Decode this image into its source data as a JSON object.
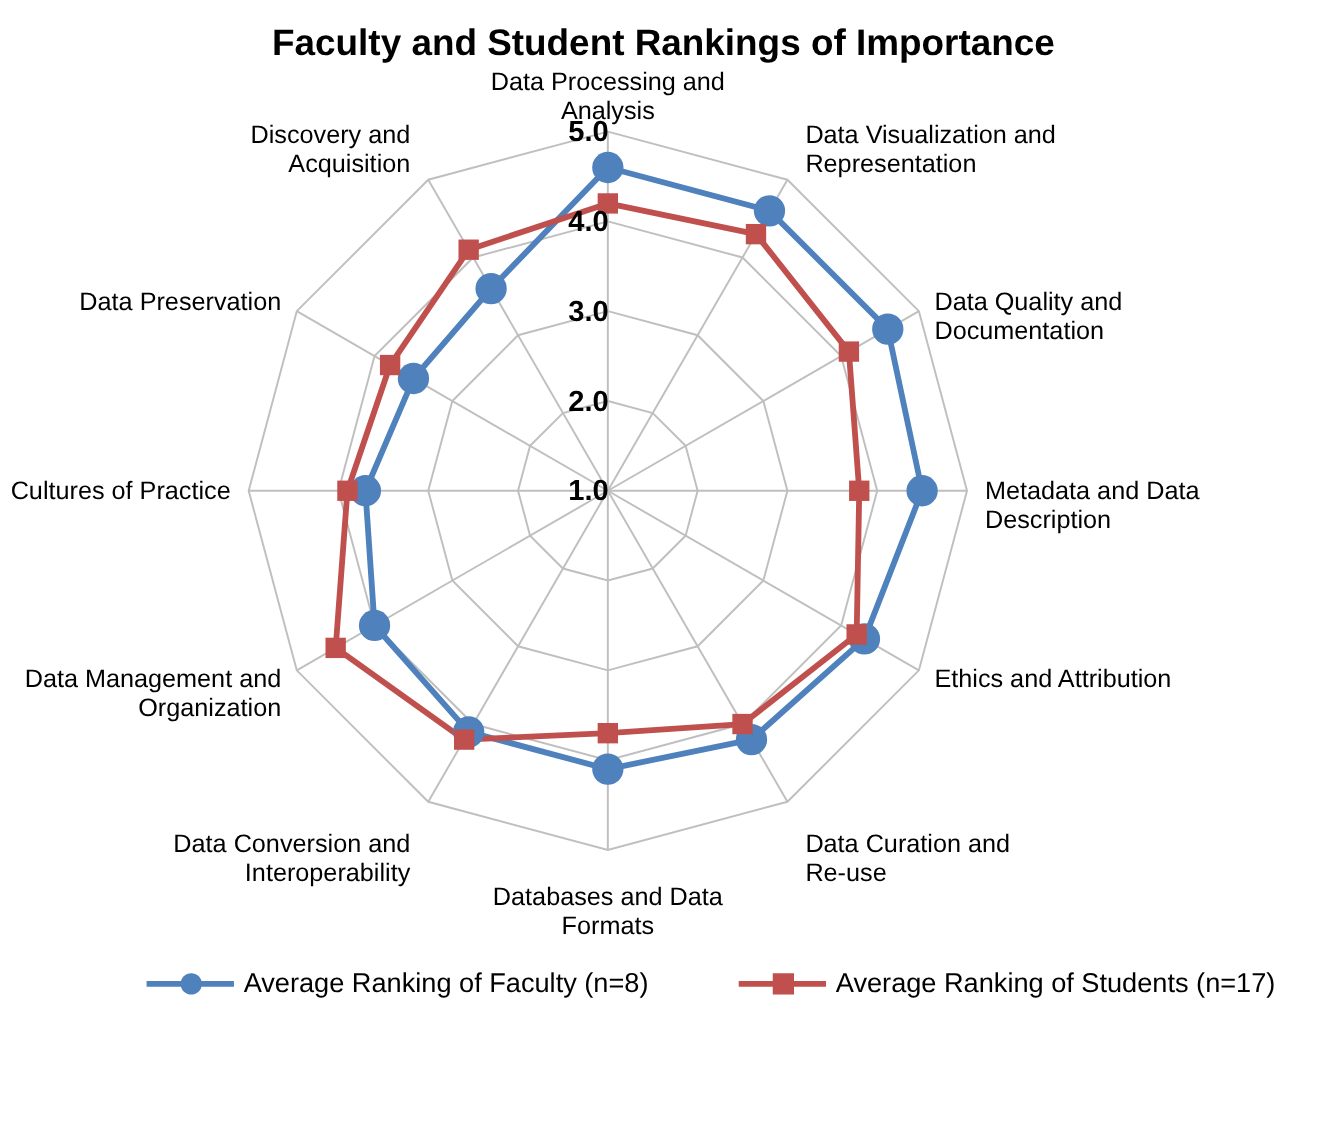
{
  "chart_data": {
    "type": "radar",
    "title": "Faculty and Student Rankings of Importance",
    "categories": [
      "Data Processing and Analysis",
      "Data Visualization and Representation",
      "Data Quality and Documentation",
      "Metadata and Data Description",
      "Ethics and Attribution",
      "Data Curation and Re-use",
      "Databases and Data Formats",
      "Data Conversion and Interoperability",
      "Data Management and Organization",
      "Cultures of Practice",
      "Data Preservation",
      "Discovery and Acquisition"
    ],
    "series": [
      {
        "name": "Average Ranking of Faculty (n=8)",
        "color": "#4f81bd",
        "marker": "circle",
        "values": [
          4.6,
          4.6,
          4.6,
          4.5,
          4.3,
          4.2,
          4.1,
          4.1,
          4.0,
          3.7,
          3.5,
          3.6
        ]
      },
      {
        "name": "Average Ranking of Students (n=17)",
        "color": "#c0504d",
        "marker": "square",
        "values": [
          4.2,
          4.3,
          4.1,
          3.8,
          4.2,
          4.0,
          3.7,
          4.2,
          4.5,
          3.9,
          3.8,
          4.1
        ]
      }
    ],
    "ylim": [
      1,
      5
    ],
    "yticks": [
      {
        "value": 1,
        "label": "1.0"
      },
      {
        "value": 2,
        "label": "2.0"
      },
      {
        "value": 3,
        "label": "3.0"
      },
      {
        "value": 4,
        "label": "4.0"
      },
      {
        "value": 5,
        "label": "5.0"
      }
    ],
    "grid": true,
    "legend": "bottom"
  }
}
